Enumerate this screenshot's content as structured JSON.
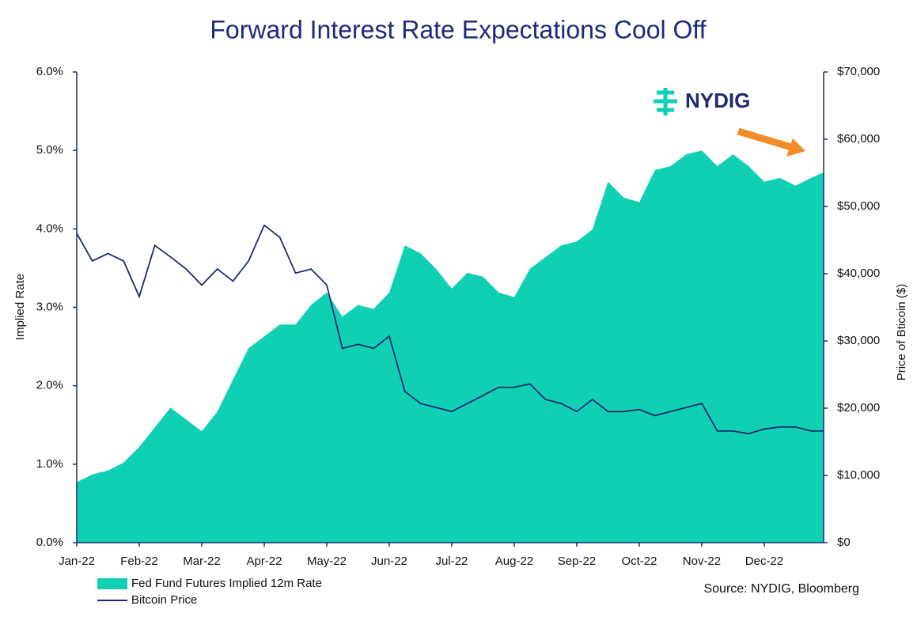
{
  "chart_data": {
    "type": "area-line",
    "title": "Forward Interest Rate Expectations Cool Off",
    "ylabel": "Implied Rate",
    "y2label": "Price of Bticoin ($)",
    "source": "Source: NYDIG, Bloomberg",
    "logo": "NYDIG",
    "xlim": [
      0,
      11.95
    ],
    "xticks": [
      {
        "value": 0,
        "label": "Jan-22"
      },
      {
        "value": 1,
        "label": "Feb-22"
      },
      {
        "value": 2,
        "label": "Mar-22"
      },
      {
        "value": 3,
        "label": "Apr-22"
      },
      {
        "value": 4,
        "label": "May-22"
      },
      {
        "value": 5,
        "label": "Jun-22"
      },
      {
        "value": 6,
        "label": "Jul-22"
      },
      {
        "value": 7,
        "label": "Aug-22"
      },
      {
        "value": 8,
        "label": "Sep-22"
      },
      {
        "value": 9,
        "label": "Oct-22"
      },
      {
        "value": 10,
        "label": "Nov-22"
      },
      {
        "value": 11,
        "label": "Dec-22"
      }
    ],
    "ylim": [
      0,
      6
    ],
    "yticks": [
      {
        "value": 0,
        "label": "0.0%"
      },
      {
        "value": 1,
        "label": "1.0%"
      },
      {
        "value": 2,
        "label": "2.0%"
      },
      {
        "value": 3,
        "label": "3.0%"
      },
      {
        "value": 4,
        "label": "4.0%"
      },
      {
        "value": 5,
        "label": "5.0%"
      },
      {
        "value": 6,
        "label": "6.0%"
      }
    ],
    "y2lim": [
      0,
      70000
    ],
    "y2ticks": [
      {
        "value": 0,
        "label": "$0"
      },
      {
        "value": 10000,
        "label": "$10,000"
      },
      {
        "value": 20000,
        "label": "$20,000"
      },
      {
        "value": 30000,
        "label": "$30,000"
      },
      {
        "value": 40000,
        "label": "$40,000"
      },
      {
        "value": 50000,
        "label": "$50,000"
      },
      {
        "value": 60000,
        "label": "$60,000"
      },
      {
        "value": 70000,
        "label": "$70,000"
      }
    ],
    "x": [
      0,
      0.25,
      0.5,
      0.75,
      1,
      1.25,
      1.5,
      1.75,
      2,
      2.25,
      2.5,
      2.75,
      3,
      3.25,
      3.5,
      3.75,
      4,
      4.25,
      4.5,
      4.75,
      5,
      5.25,
      5.5,
      5.75,
      6,
      6.25,
      6.5,
      6.75,
      7,
      7.25,
      7.5,
      7.75,
      8,
      8.25,
      8.5,
      8.75,
      9,
      9.25,
      9.5,
      9.75,
      10,
      10.25,
      10.5,
      10.75,
      11,
      11.25,
      11.5,
      11.75,
      11.95
    ],
    "series": [
      {
        "name": "Fed Fund Futures Implied 12m Rate",
        "color": "#10d0b4",
        "kind": "area",
        "values": [
          0.77,
          0.87,
          0.92,
          1.02,
          1.22,
          1.47,
          1.72,
          1.57,
          1.42,
          1.67,
          2.08,
          2.48,
          2.63,
          2.78,
          2.78,
          3.03,
          3.19,
          2.88,
          3.03,
          2.98,
          3.19,
          3.79,
          3.69,
          3.49,
          3.24,
          3.44,
          3.39,
          3.19,
          3.13,
          3.49,
          3.64,
          3.79,
          3.84,
          3.99,
          4.6,
          4.4,
          4.34,
          4.75,
          4.8,
          4.95,
          5.0,
          4.8,
          4.95,
          4.8,
          4.6,
          4.65,
          4.55,
          4.65,
          4.72
        ]
      },
      {
        "name": "Bitcoin Price",
        "color": "#1f2a6e",
        "kind": "line",
        "axis": "y2",
        "values": [
          46000,
          41900,
          43000,
          41900,
          36600,
          44200,
          42500,
          40700,
          38300,
          40700,
          38900,
          41900,
          47200,
          45400,
          40100,
          40700,
          38300,
          28900,
          29500,
          28900,
          30700,
          22500,
          20700,
          20100,
          19500,
          20700,
          21900,
          23100,
          23100,
          23600,
          21300,
          20700,
          19500,
          21300,
          19500,
          19500,
          19800,
          18900,
          19500,
          20100,
          20700,
          16600,
          16600,
          16200,
          16900,
          17200,
          17200,
          16600,
          16600
        ]
      }
    ]
  }
}
